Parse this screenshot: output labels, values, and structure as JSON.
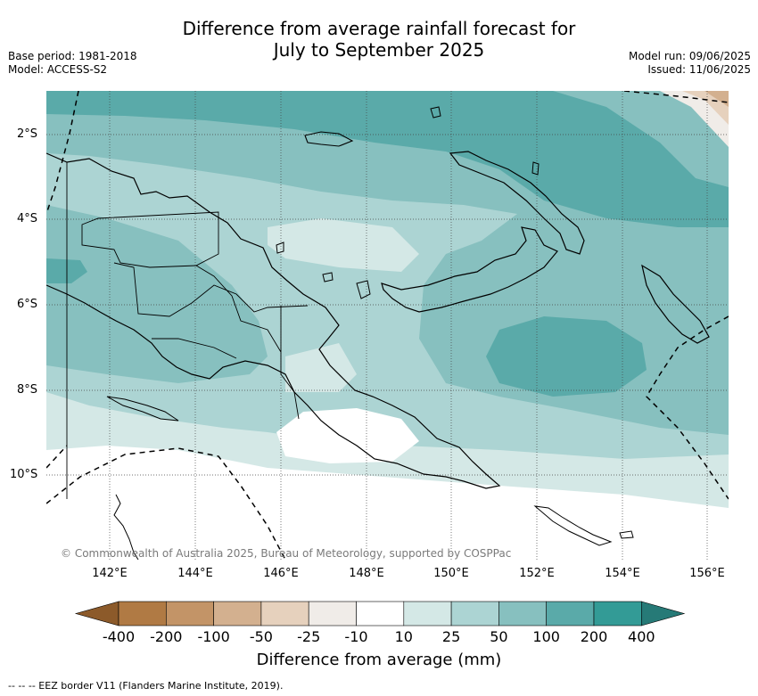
{
  "title_line1": "Difference from average rainfall forecast for",
  "title_line2": "July to September 2025",
  "meta_left": [
    "Base period: 1981-2018",
    "Model: ACCESS-S2"
  ],
  "meta_right": [
    "Model run: 09/06/2025",
    "Issued: 11/06/2025"
  ],
  "lat_labels": [
    "2°S",
    "4°S",
    "6°S",
    "8°S",
    "10°S"
  ],
  "lon_labels": [
    "142°E",
    "144°E",
    "146°E",
    "148°E",
    "150°E",
    "152°E",
    "154°E",
    "156°E"
  ],
  "copyright": "© Commonwealth of Australia 2025, Bureau of Meteorology, supported by COSPPac",
  "colorbar": {
    "label": "Difference from average (mm)",
    "ticks": [
      "-400",
      "-200",
      "-100",
      "-50",
      "-25",
      "-10",
      "10",
      "25",
      "50",
      "100",
      "200",
      "400"
    ],
    "colors": [
      "#8c5a2a",
      "#b07a44",
      "#c39467",
      "#d3b08f",
      "#e6d1bd",
      "#f0ece8",
      "#ffffff",
      "#d4e8e6",
      "#acd4d3",
      "#87c0bf",
      "#5aaaa9",
      "#339b96",
      "#267a77"
    ]
  },
  "legend_footer": "--  --  -- EEZ border V11 (Flanders Marine Institute, 2019).",
  "map_colors": {
    "land_outline": "#000000",
    "eez": "#000000",
    "grid": "#444444"
  }
}
